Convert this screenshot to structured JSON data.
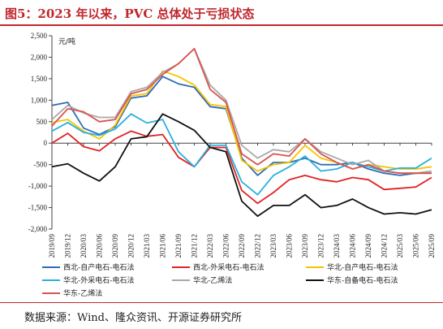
{
  "title": "图5：2023 年以来，PVC 总体处于亏损状态",
  "source": "数据来源：Wind、隆众资讯、开源证券研究所",
  "chart_data": {
    "type": "line",
    "unit_label": "元/吨",
    "ylim": [
      -2000,
      2500
    ],
    "yticks": [
      "2,500",
      "2,000",
      "1,500",
      "1,000",
      "500",
      "0",
      "-500",
      "-1,000",
      "-1,500",
      "-2,000"
    ],
    "ytick_values": [
      2500,
      2000,
      1500,
      1000,
      500,
      0,
      -500,
      -1000,
      -1500,
      -2000
    ],
    "x_tick_labels": [
      "2019/09",
      "2019/12",
      "2020/03",
      "2020/06",
      "2020/09",
      "2020/12",
      "2021/03",
      "2021/06",
      "2021/09",
      "2021/12",
      "2022/03",
      "2022/06",
      "2022/09",
      "2022/12",
      "2023/03",
      "2023/06",
      "2023/09",
      "2023/12",
      "2024/03",
      "2024/06",
      "2024/09",
      "2024/12",
      "2025/03",
      "2025/06",
      "2025/09"
    ],
    "series": [
      {
        "name": "西北-自产电石-电石法",
        "color": "#2e6cb5",
        "values": [
          880,
          950,
          350,
          200,
          380,
          1050,
          1100,
          1550,
          1380,
          1300,
          850,
          800,
          -350,
          -750,
          -450,
          -450,
          -350,
          -500,
          -500,
          -450,
          -600,
          -700,
          -750,
          -700,
          -700
        ]
      },
      {
        "name": "西北-外采电石-电石法",
        "color": "#e02424",
        "values": [
          0,
          230,
          -80,
          -180,
          100,
          280,
          160,
          200,
          -330,
          -550,
          -100,
          -100,
          -1100,
          -1400,
          -1150,
          -850,
          -750,
          -850,
          -900,
          -800,
          -850,
          -1080,
          -1050,
          -1020,
          -800
        ]
      },
      {
        "name": "华北-自产电石-电石法",
        "color": "#f5c400",
        "values": [
          480,
          550,
          280,
          100,
          420,
          1100,
          1150,
          1680,
          1550,
          1350,
          900,
          850,
          -400,
          -650,
          -500,
          -450,
          -50,
          -350,
          -450,
          -600,
          -500,
          -550,
          -600,
          -600,
          -550
        ]
      },
      {
        "name": "华北-外采电石-电石法",
        "color": "#2ab0dc",
        "values": [
          280,
          480,
          250,
          180,
          330,
          680,
          470,
          550,
          -200,
          -550,
          -50,
          -50,
          -900,
          -1200,
          -750,
          -550,
          -300,
          -650,
          -600,
          -450,
          -550,
          -650,
          -580,
          -580,
          -350
        ]
      },
      {
        "name": "华北-乙烯法",
        "color": "#a9a9a9",
        "values": [
          550,
          880,
          700,
          600,
          600,
          1200,
          1300,
          1650,
          1850,
          2200,
          1350,
          1000,
          -50,
          -350,
          -150,
          -200,
          100,
          -200,
          -350,
          -500,
          -400,
          -650,
          -700,
          -700,
          -650
        ]
      },
      {
        "name": "华东-自备电石-电石法",
        "color": "#111111",
        "values": [
          -550,
          -480,
          -700,
          -880,
          -550,
          100,
          150,
          680,
          500,
          300,
          -100,
          -200,
          -1350,
          -1700,
          -1450,
          -1450,
          -1200,
          -1500,
          -1450,
          -1300,
          -1500,
          -1650,
          -1620,
          -1650,
          -1550
        ]
      },
      {
        "name": "华东-乙烯法",
        "color": "#d9534f",
        "values": [
          400,
          800,
          730,
          500,
          550,
          1150,
          1250,
          1600,
          1850,
          2200,
          1250,
          950,
          -250,
          -500,
          -250,
          -300,
          100,
          -250,
          -450,
          -600,
          -500,
          -650,
          -700,
          -700,
          -700
        ]
      }
    ],
    "legend_position": "bottom",
    "grid": false
  }
}
